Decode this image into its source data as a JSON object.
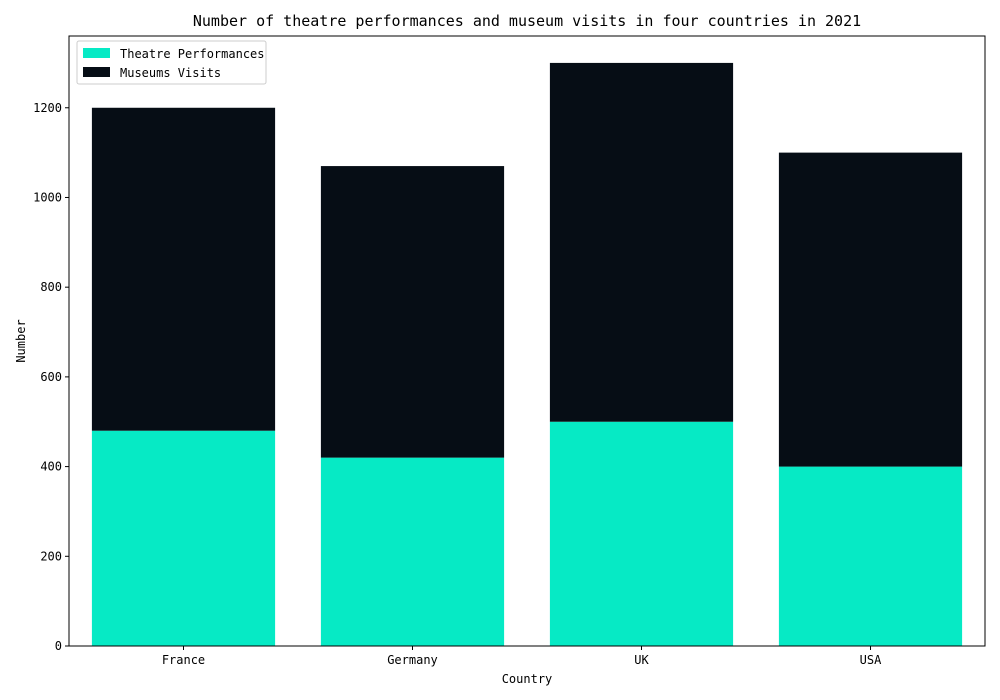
{
  "chart_data": {
    "type": "bar",
    "stacked": true,
    "title": "Number of theatre performances and museum visits in four countries in 2021",
    "xlabel": "Country",
    "ylabel": "Number",
    "categories": [
      "France",
      "Germany",
      "UK",
      "USA"
    ],
    "series": [
      {
        "name": "Theatre Performances",
        "values": [
          480,
          420,
          500,
          400
        ],
        "color": "#06EAC5"
      },
      {
        "name": "Museums Visits",
        "values": [
          720,
          650,
          800,
          700
        ],
        "color": "#060D15"
      }
    ],
    "ylim": [
      0,
      1360
    ],
    "yticks": [
      0,
      200,
      400,
      600,
      800,
      1000,
      1200
    ],
    "grid": false,
    "legend_position": "top-left"
  }
}
